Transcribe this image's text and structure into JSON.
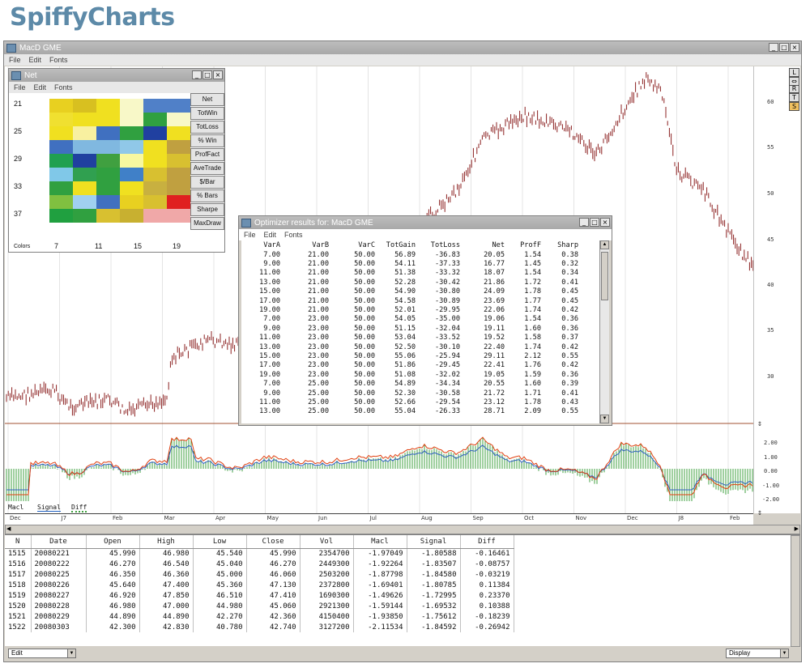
{
  "brand": "SpiffyCharts",
  "main_window": {
    "title": "MacD  GME",
    "menu": [
      "File",
      "Edit",
      "Fonts"
    ],
    "price_axis": [
      "60",
      "55",
      "50",
      "45",
      "40",
      "35",
      "30"
    ],
    "macd_axis": [
      "2.00",
      "1.00",
      "0.00",
      "-1.00",
      "-2.00"
    ],
    "legend": [
      "Macl",
      "Signal",
      "Diff"
    ],
    "months": [
      "Dec",
      "J7",
      "Feb",
      "Mar",
      "Apr",
      "May",
      "Jun",
      "Jul",
      "Aug",
      "Sep",
      "Oct",
      "Nov",
      "Dec",
      "J8",
      "Feb"
    ],
    "side_buttons": [
      "L",
      "R",
      "T",
      "S"
    ]
  },
  "net_window": {
    "title": "Net",
    "menu": [
      "File",
      "Edit",
      "Fonts"
    ],
    "row_labels": [
      "21",
      "25",
      "29",
      "33",
      "37"
    ],
    "col_labels": [
      "7",
      "11",
      "15",
      "19"
    ],
    "colors_label": "Colors",
    "buttons": [
      "Net",
      "TotWin",
      "TotLoss",
      "% Win",
      "ProfFact",
      "AveTrade",
      "$/Bar",
      "% Bars",
      "Sharpe",
      "MaxDraw"
    ],
    "cells": [
      "#e8d020",
      "#d8c020",
      "#f0e020",
      "#f8f8c8",
      "#5080c8",
      "#5080c8",
      "#f0e030",
      "#f0e020",
      "#f0e020",
      "#f8f8c8",
      "#30a040",
      "#f8f8c8",
      "#f0e020",
      "#f8f0a0",
      "#4070c0",
      "#30a040",
      "#2040a0",
      "#f0e020",
      "#4070c0",
      "#80b8e0",
      "#80b8e0",
      "#90c8e8",
      "#f0e020",
      "#c0a040",
      "#20a050",
      "#2040a0",
      "#40a040",
      "#f8f8a0",
      "#f0e020",
      "#d8c030",
      "#80c8e8",
      "#30a050",
      "#30a040",
      "#4080c8",
      "#d8c030",
      "#c0a040",
      "#30a040",
      "#f0e020",
      "#30a040",
      "#f0e020",
      "#c8b040",
      "#c0a040",
      "#80c040",
      "#a0d0f0",
      "#4070c0",
      "#e8d020",
      "#d8c030",
      "#e02020",
      "#20a040",
      "#30a040",
      "#d8c030",
      "#c8b030",
      "#f0a8a8",
      "#f0a8a8"
    ]
  },
  "optimizer": {
    "title": "Optimizer results for: MacD  GME",
    "menu": [
      "File",
      "Edit",
      "Fonts"
    ],
    "columns": [
      "VarA",
      "VarB",
      "VarC",
      "TotGain",
      "TotLoss",
      "Net",
      "ProfF",
      "Sharp"
    ],
    "rows": [
      [
        "7.00",
        "21.00",
        "50.00",
        "56.89",
        "-36.83",
        "20.05",
        "1.54",
        "0.38"
      ],
      [
        "9.00",
        "21.00",
        "50.00",
        "54.11",
        "-37.33",
        "16.77",
        "1.45",
        "0.32"
      ],
      [
        "11.00",
        "21.00",
        "50.00",
        "51.38",
        "-33.32",
        "18.07",
        "1.54",
        "0.34"
      ],
      [
        "13.00",
        "21.00",
        "50.00",
        "52.28",
        "-30.42",
        "21.86",
        "1.72",
        "0.41"
      ],
      [
        "15.00",
        "21.00",
        "50.00",
        "54.90",
        "-30.80",
        "24.09",
        "1.78",
        "0.45"
      ],
      [
        "17.00",
        "21.00",
        "50.00",
        "54.58",
        "-30.89",
        "23.69",
        "1.77",
        "0.45"
      ],
      [
        "19.00",
        "21.00",
        "50.00",
        "52.01",
        "-29.95",
        "22.06",
        "1.74",
        "0.42"
      ],
      [
        "7.00",
        "23.00",
        "50.00",
        "54.05",
        "-35.00",
        "19.06",
        "1.54",
        "0.36"
      ],
      [
        "9.00",
        "23.00",
        "50.00",
        "51.15",
        "-32.04",
        "19.11",
        "1.60",
        "0.36"
      ],
      [
        "11.00",
        "23.00",
        "50.00",
        "53.04",
        "-33.52",
        "19.52",
        "1.58",
        "0.37"
      ],
      [
        "13.00",
        "23.00",
        "50.00",
        "52.50",
        "-30.10",
        "22.40",
        "1.74",
        "0.42"
      ],
      [
        "15.00",
        "23.00",
        "50.00",
        "55.06",
        "-25.94",
        "29.11",
        "2.12",
        "0.55"
      ],
      [
        "17.00",
        "23.00",
        "50.00",
        "51.86",
        "-29.45",
        "22.41",
        "1.76",
        "0.42"
      ],
      [
        "19.00",
        "23.00",
        "50.00",
        "51.08",
        "-32.02",
        "19.05",
        "1.59",
        "0.36"
      ],
      [
        "7.00",
        "25.00",
        "50.00",
        "54.89",
        "-34.34",
        "20.55",
        "1.60",
        "0.39"
      ],
      [
        "9.00",
        "25.00",
        "50.00",
        "52.30",
        "-30.58",
        "21.72",
        "1.71",
        "0.41"
      ],
      [
        "11.00",
        "25.00",
        "50.00",
        "52.66",
        "-29.54",
        "23.12",
        "1.78",
        "0.43"
      ],
      [
        "13.00",
        "25.00",
        "50.00",
        "55.04",
        "-26.33",
        "28.71",
        "2.09",
        "0.55"
      ]
    ]
  },
  "data_grid": {
    "columns": [
      "N",
      "Date",
      "Open",
      "High",
      "Low",
      "Close",
      "Vol",
      "Macl",
      "Signal",
      "Diff"
    ],
    "rows": [
      [
        "1515",
        "20080221",
        "45.990",
        "46.980",
        "45.540",
        "45.990",
        "2354700",
        "-1.97049",
        "-1.80588",
        "-0.16461"
      ],
      [
        "1516",
        "20080222",
        "46.270",
        "46.540",
        "45.040",
        "46.270",
        "2449300",
        "-1.92264",
        "-1.83507",
        "-0.08757"
      ],
      [
        "1517",
        "20080225",
        "46.350",
        "46.360",
        "45.000",
        "46.060",
        "2503200",
        "-1.87798",
        "-1.84580",
        "-0.03219"
      ],
      [
        "1518",
        "20080226",
        "45.640",
        "47.400",
        "45.360",
        "47.130",
        "2372800",
        "-1.69401",
        "-1.80785",
        "0.11384"
      ],
      [
        "1519",
        "20080227",
        "46.920",
        "47.850",
        "46.510",
        "47.410",
        "1690300",
        "-1.49626",
        "-1.72995",
        "0.23370"
      ],
      [
        "1520",
        "20080228",
        "46.980",
        "47.000",
        "44.980",
        "45.060",
        "2921300",
        "-1.59144",
        "-1.69532",
        "0.10388"
      ],
      [
        "1521",
        "20080229",
        "44.890",
        "44.890",
        "42.270",
        "42.360",
        "4150400",
        "-1.93850",
        "-1.75612",
        "-0.18239"
      ],
      [
        "1522",
        "20080303",
        "42.300",
        "42.830",
        "40.780",
        "42.740",
        "3127200",
        "-2.11534",
        "-1.84592",
        "-0.26942"
      ]
    ]
  },
  "status": {
    "left_combo": "Edit",
    "right_combo": "Display"
  }
}
